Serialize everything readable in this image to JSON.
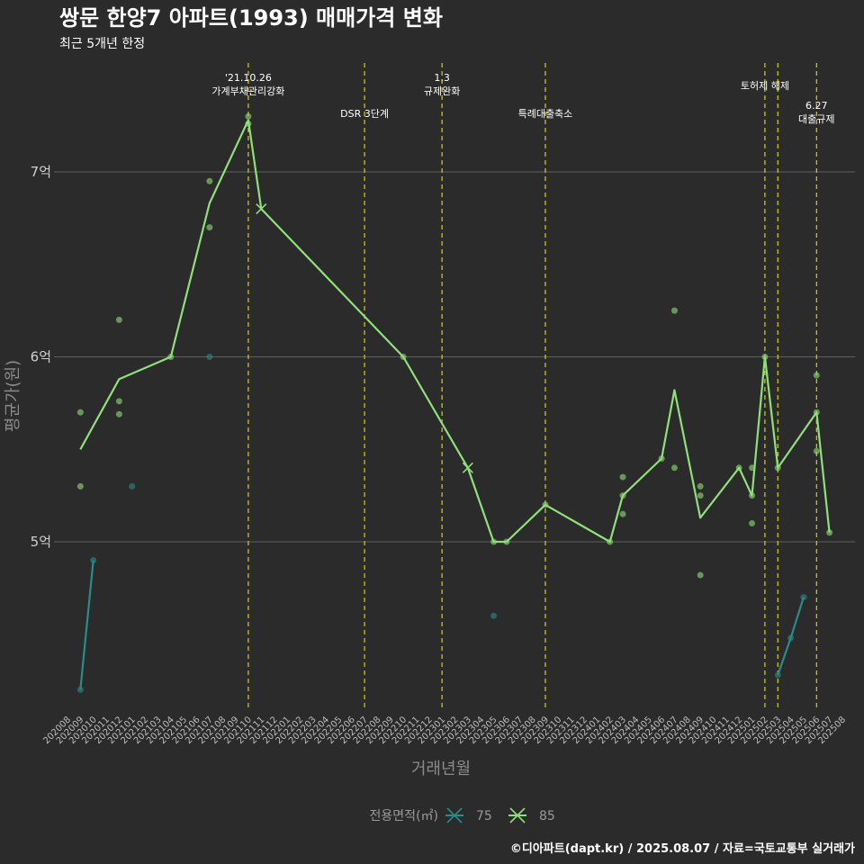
{
  "chart_data": {
    "type": "line",
    "title": "쌍문 한양7 아파트(1993) 매매가격 변화",
    "subtitle": "최근 5개년 한정",
    "xlabel": "거래년월",
    "ylabel": "평균가(원)",
    "caption": "©디아파트(dapt.kr) / 2025.08.07 / 자료=국토교통부 실거래가",
    "y_unit": "억",
    "ylim": [
      4.0,
      7.6
    ],
    "yticks": [
      {
        "value": 5,
        "label": "5억"
      },
      {
        "value": 6,
        "label": "6억"
      },
      {
        "value": 7,
        "label": "7억"
      }
    ],
    "grid": true,
    "legend": {
      "title": "전용면적(㎡)",
      "placement": "bottom",
      "entries": [
        {
          "label": "75",
          "color": "#2a8b8b"
        },
        {
          "label": "85",
          "color": "#8fe07a"
        }
      ]
    },
    "x_categories": [
      "202008",
      "202009",
      "202010",
      "202011",
      "202012",
      "202101",
      "202102",
      "202103",
      "202104",
      "202105",
      "202106",
      "202107",
      "202108",
      "202109",
      "202110",
      "202111",
      "202112",
      "202201",
      "202202",
      "202203",
      "202204",
      "202205",
      "202206",
      "202207",
      "202208",
      "202209",
      "202210",
      "202211",
      "202212",
      "202301",
      "202302",
      "202303",
      "202304",
      "202305",
      "202306",
      "202307",
      "202308",
      "202309",
      "202310",
      "202311",
      "202312",
      "202401",
      "202402",
      "202403",
      "202404",
      "202405",
      "202406",
      "202407",
      "202408",
      "202409",
      "202410",
      "202411",
      "202412",
      "202501",
      "202502",
      "202503",
      "202504",
      "202505",
      "202506",
      "202507",
      "202508"
    ],
    "events": [
      {
        "month": "202110",
        "lines": [
          "'21.10.26",
          "가계부채관리강화"
        ],
        "tier": 0
      },
      {
        "month": "202207",
        "lines": [
          "DSR 3단계"
        ],
        "tier": 2
      },
      {
        "month": "202301",
        "lines": [
          "1.3",
          "규제완화"
        ],
        "tier": 0
      },
      {
        "month": "202309",
        "lines": [
          "특례대출축소"
        ],
        "tier": 2
      },
      {
        "month": "202502",
        "lines": [
          "토허제 해제"
        ],
        "tier": 1
      },
      {
        "month": "202503",
        "lines": [],
        "tier": 1
      },
      {
        "month": "202506",
        "lines": [
          "6.27",
          "대출규제"
        ],
        "tier": 3
      }
    ],
    "series": [
      {
        "name": "75",
        "color": "#2a8b8b",
        "line_segments": [
          [
            {
              "x": "202009",
              "y": 4.2
            },
            {
              "x": "202010",
              "y": 4.9
            }
          ],
          [
            {
              "x": "202503",
              "y": 4.28
            },
            {
              "x": "202504",
              "y": 4.48
            },
            {
              "x": "202505",
              "y": 4.7
            }
          ]
        ],
        "points": [
          {
            "x": "202009",
            "y": 4.2
          },
          {
            "x": "202010",
            "y": 4.9
          },
          {
            "x": "202101",
            "y": 5.3
          },
          {
            "x": "202107",
            "y": 6.0
          },
          {
            "x": "202305",
            "y": 4.6
          },
          {
            "x": "202503",
            "y": 4.28
          },
          {
            "x": "202504",
            "y": 4.48
          },
          {
            "x": "202505",
            "y": 4.7
          }
        ],
        "x_marks": []
      },
      {
        "name": "85",
        "color": "#8fe07a",
        "line_segments": [
          [
            {
              "x": "202009",
              "y": 5.5
            },
            {
              "x": "202012",
              "y": 5.88
            },
            {
              "x": "202104",
              "y": 6.0
            },
            {
              "x": "202107",
              "y": 6.83
            },
            {
              "x": "202110",
              "y": 7.28
            },
            {
              "x": "202111",
              "y": 6.8
            },
            {
              "x": "202210",
              "y": 6.0
            },
            {
              "x": "202303",
              "y": 5.4
            },
            {
              "x": "202305",
              "y": 5.0
            },
            {
              "x": "202306",
              "y": 5.0
            },
            {
              "x": "202309",
              "y": 5.2
            },
            {
              "x": "202402",
              "y": 5.0
            },
            {
              "x": "202403",
              "y": 5.25
            },
            {
              "x": "202406",
              "y": 5.45
            },
            {
              "x": "202407",
              "y": 5.82
            },
            {
              "x": "202409",
              "y": 5.13
            },
            {
              "x": "202412",
              "y": 5.4
            },
            {
              "x": "202501",
              "y": 5.25
            },
            {
              "x": "202502",
              "y": 6.0
            },
            {
              "x": "202503",
              "y": 5.4
            },
            {
              "x": "202506",
              "y": 5.7
            },
            {
              "x": "202507",
              "y": 5.05
            }
          ]
        ],
        "points": [
          {
            "x": "202009",
            "y": 5.7
          },
          {
            "x": "202009",
            "y": 5.3
          },
          {
            "x": "202012",
            "y": 6.2
          },
          {
            "x": "202012",
            "y": 5.76
          },
          {
            "x": "202012",
            "y": 5.69
          },
          {
            "x": "202104",
            "y": 6.0
          },
          {
            "x": "202107",
            "y": 6.95
          },
          {
            "x": "202107",
            "y": 6.7
          },
          {
            "x": "202110",
            "y": 7.3
          },
          {
            "x": "202110",
            "y": 7.26
          },
          {
            "x": "202210",
            "y": 6.0
          },
          {
            "x": "202305",
            "y": 5.0
          },
          {
            "x": "202306",
            "y": 5.0
          },
          {
            "x": "202309",
            "y": 5.2
          },
          {
            "x": "202402",
            "y": 5.0
          },
          {
            "x": "202403",
            "y": 5.35
          },
          {
            "x": "202403",
            "y": 5.25
          },
          {
            "x": "202403",
            "y": 5.15
          },
          {
            "x": "202406",
            "y": 5.45
          },
          {
            "x": "202407",
            "y": 6.25
          },
          {
            "x": "202407",
            "y": 5.4
          },
          {
            "x": "202409",
            "y": 5.3
          },
          {
            "x": "202409",
            "y": 5.25
          },
          {
            "x": "202409",
            "y": 4.82
          },
          {
            "x": "202412",
            "y": 5.4
          },
          {
            "x": "202501",
            "y": 5.4
          },
          {
            "x": "202501",
            "y": 5.25
          },
          {
            "x": "202501",
            "y": 5.1
          },
          {
            "x": "202502",
            "y": 6.0
          },
          {
            "x": "202503",
            "y": 5.4
          },
          {
            "x": "202506",
            "y": 5.9
          },
          {
            "x": "202506",
            "y": 5.7
          },
          {
            "x": "202506",
            "y": 5.49
          },
          {
            "x": "202507",
            "y": 5.05
          }
        ],
        "x_marks": [
          {
            "x": "202111",
            "y": 6.8
          },
          {
            "x": "202303",
            "y": 5.4
          }
        ]
      }
    ]
  }
}
